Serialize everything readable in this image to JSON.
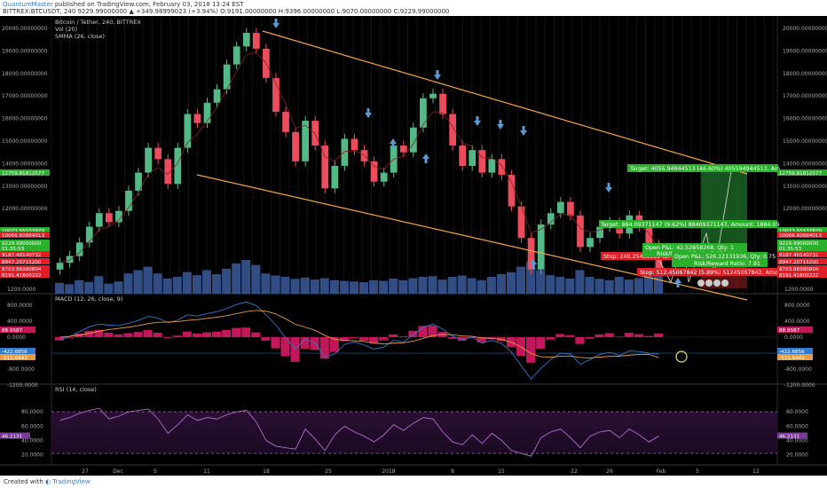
{
  "header": {
    "author": "QuantumMaster",
    "published": "published on TradingView.com, February 03, 2018 13:24 EST",
    "symbol_line": "BITTREX:BTCUSDT, 240  9229.99000000  ▲ +349.98999023 (+3.94%)  O:9191.00000000  H:9396.00000000  L:9070.00000000  C:9229.99000000"
  },
  "footer": {
    "created_with": "Created with",
    "brand": "TradingView"
  },
  "legend": {
    "title": "Bitcoin / Tether, 240, BITTREX",
    "vol": "Vol (20)",
    "smma": "SMMA (26, close)"
  },
  "colors": {
    "background": "#000000",
    "bull": "#53b987",
    "bear": "#eb4d5c",
    "trendline": "#f5a442",
    "arrow": "#5b9bd5",
    "macd_line": "#2e7bcf",
    "signal_line": "#e89a3c",
    "rsi_line": "#b86cd6",
    "volume": "#3a5a9a",
    "target_label": "#2bb02b",
    "stop_label": "#e01e28"
  },
  "price_axis": {
    "ticks": [
      "20000.00000000",
      "19000.00000000",
      "18000.00000000",
      "17000.00000000",
      "16000.00000000",
      "15000.00000000",
      "14000.00000000",
      "13000.00000000",
      "12000.00000000",
      "11000.00000000",
      "10000.00000000"
    ]
  },
  "left_badges": [
    {
      "text": "12759.81812577",
      "color": "#2bb02b"
    },
    {
      "text": "10073.55537879",
      "color": "#2bb02b"
    },
    {
      "text": "10066.60884013",
      "color": "#e01e28"
    },
    {
      "text": "9229.99000000",
      "color": "#2bb02b"
    },
    {
      "text": "01:35:53",
      "color": "#2bb02b"
    },
    {
      "text": "9187.40140732",
      "color": "#e01e28"
    },
    {
      "text": "8947.20715200",
      "color": "#e01e28"
    },
    {
      "text": "8703.86980804",
      "color": "#e01e28"
    },
    {
      "text": "8191.41800222",
      "color": "#e01e28"
    }
  ],
  "right_badges": [
    {
      "text": "12759.81812577",
      "color": "#2bb02b"
    },
    {
      "text": "10073.55537879",
      "color": "#2bb02b"
    },
    {
      "text": "10066.60884013",
      "color": "#e01e28"
    },
    {
      "text": "9229.99000000",
      "color": "#2bb02b"
    },
    {
      "text": "01:35:53",
      "color": "#2bb02b"
    },
    {
      "text": "9187.40140732",
      "color": "#e01e28"
    },
    {
      "text": "8947.20715200",
      "color": "#e01e28"
    },
    {
      "text": "8703.86980804",
      "color": "#e01e28"
    },
    {
      "text": "8191.41800222",
      "color": "#e01e28"
    }
  ],
  "trade_labels": {
    "target1": "Target: 4055.94944513 (46.60%) 405594944513, Am",
    "target2": "Target: 884.09371147 (9.62%) 88409371147, Amount: 1884.09",
    "stop1": "Stop: 240.25431532 (2.",
    "stop2": "Stop: 512.45067842 (5.89%) 51245067842, Amou",
    "pl1": "Open P&L: 42.52858268, Qty: 1",
    "rr1": "Risk/Reward Ratio: 3.68",
    "pl2": "Open P&L: 526.12131936, Qty: 0.75",
    "rr2": "Risk/Reward Ratio: 7.91"
  },
  "macd_panel": {
    "label": "MACD (12, 26, close, 9)",
    "ticks": [
      "1200.0000",
      "800.0000",
      "400.0000",
      "0.0000",
      "-400.0000",
      "-800.0000",
      "-1200.0000"
    ],
    "badge1": "-422.6856",
    "badge2": "-511.6443",
    "badge3": "88.9587"
  },
  "rsi_panel": {
    "label": "RSI (14, close)",
    "ticks": [
      "80.0000",
      "60.0000",
      "40.0000",
      "20.0000"
    ],
    "badge": "46.2131"
  },
  "time_axis": {
    "labels": [
      "27",
      "Dec",
      "5",
      "11",
      "18",
      "25",
      "2018",
      "8",
      "15",
      "22",
      "26",
      "Feb",
      "5",
      "12"
    ]
  },
  "chart_data": {
    "type": "candlestick",
    "title": "Bitcoin / Tether, 240, BITTREX",
    "ylim": [
      8000,
      20500
    ],
    "close_series": [
      9600,
      9900,
      10500,
      11200,
      11800,
      11400,
      11900,
      12800,
      13600,
      14700,
      14200,
      13100,
      14700,
      16200,
      15800,
      16700,
      17300,
      18400,
      19200,
      19800,
      19100,
      17800,
      16300,
      15400,
      14100,
      15900,
      14800,
      12900,
      13900,
      15100,
      14600,
      14100,
      13200,
      13600,
      14800,
      14500,
      15600,
      16900,
      17100,
      16200,
      14800,
      13900,
      14600,
      13600,
      14200,
      13500,
      12100,
      10700,
      9300,
      11300,
      11800,
      12300,
      11700,
      10300,
      10700,
      11200,
      11400,
      10900,
      11700,
      11200,
      10400,
      9230
    ],
    "volume": [
      0.32,
      0.28,
      0.4,
      0.35,
      0.52,
      0.3,
      0.36,
      0.6,
      0.7,
      0.8,
      0.6,
      0.45,
      0.5,
      0.64,
      0.55,
      0.7,
      0.58,
      0.74,
      0.9,
      1.0,
      0.85,
      0.6,
      0.54,
      0.5,
      0.44,
      0.48,
      0.42,
      0.46,
      0.4,
      0.38,
      0.36,
      0.34,
      0.4,
      0.38,
      0.45,
      0.4,
      0.46,
      0.5,
      0.52,
      0.42,
      0.5,
      0.54,
      0.46,
      0.4,
      0.5,
      0.58,
      0.64,
      0.8,
      0.95,
      0.7,
      0.55,
      0.5,
      0.45,
      0.7,
      0.5,
      0.44,
      0.4,
      0.5,
      0.42,
      0.46,
      0.6,
      0.55
    ],
    "macd": [
      -80,
      20,
      140,
      260,
      330,
      300,
      290,
      350,
      420,
      520,
      480,
      360,
      430,
      560,
      530,
      590,
      640,
      720,
      820,
      880,
      790,
      560,
      300,
      -20,
      -300,
      -40,
      -150,
      -500,
      -420,
      -180,
      -120,
      -200,
      -300,
      -250,
      -80,
      -120,
      60,
      250,
      330,
      200,
      20,
      -60,
      0,
      -150,
      -80,
      -160,
      -380,
      -720,
      -1050,
      -780,
      -560,
      -400,
      -420,
      -680,
      -560,
      -430,
      -380,
      -460,
      -340,
      -360,
      -400,
      -423
    ],
    "signal": [
      0,
      20,
      50,
      100,
      150,
      190,
      220,
      250,
      290,
      340,
      370,
      380,
      390,
      420,
      440,
      470,
      500,
      540,
      590,
      640,
      670,
      650,
      580,
      460,
      320,
      250,
      170,
      40,
      -50,
      -80,
      -90,
      -110,
      -150,
      -170,
      -150,
      -140,
      -100,
      -30,
      40,
      70,
      60,
      30,
      20,
      -20,
      -30,
      -60,
      -130,
      -250,
      -410,
      -490,
      -500,
      -480,
      -470,
      -510,
      -520,
      -500,
      -480,
      -475,
      -450,
      -435,
      -430,
      -512
    ],
    "rsi": [
      68,
      72,
      78,
      82,
      85,
      70,
      74,
      80,
      82,
      84,
      70,
      50,
      62,
      76,
      68,
      72,
      70,
      76,
      80,
      82,
      66,
      40,
      32,
      30,
      28,
      56,
      42,
      26,
      48,
      60,
      52,
      46,
      38,
      48,
      62,
      54,
      64,
      72,
      70,
      52,
      38,
      34,
      48,
      36,
      50,
      40,
      26,
      22,
      18,
      44,
      52,
      56,
      44,
      30,
      46,
      52,
      54,
      44,
      56,
      48,
      38,
      46.2
    ]
  }
}
